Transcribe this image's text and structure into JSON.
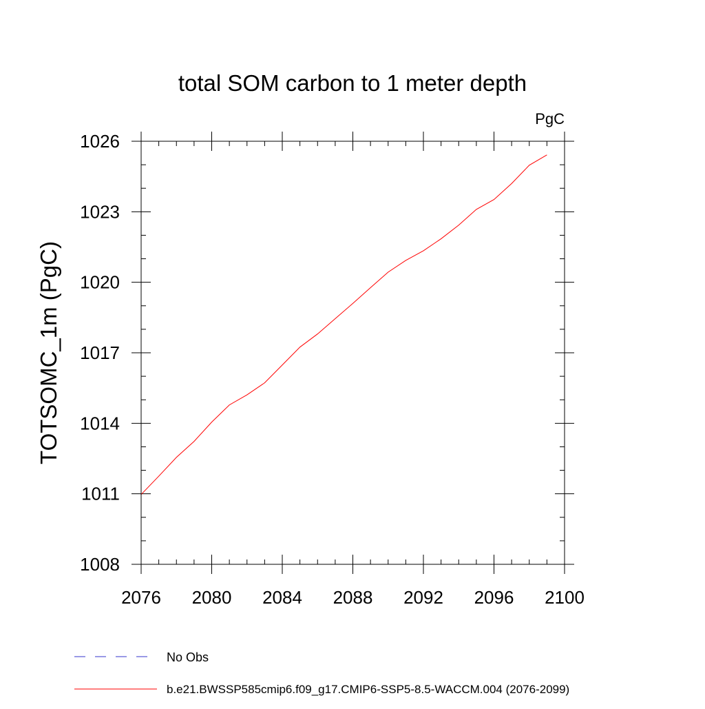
{
  "chart_data": {
    "type": "line",
    "title": "total SOM carbon to 1 meter depth",
    "units_label": "PgC",
    "ylabel": "TOTSOMC_1m  (PgC)",
    "xlabel": "",
    "xlim": [
      2076,
      2100
    ],
    "ylim": [
      1008,
      1026
    ],
    "x_ticks": [
      2076,
      2080,
      2084,
      2088,
      2092,
      2096,
      2100
    ],
    "y_ticks": [
      1008,
      1011,
      1014,
      1017,
      1020,
      1023,
      1026
    ],
    "x_minor_step": 1,
    "y_minor_step": 1,
    "grid": false,
    "legend_position": "bottom",
    "series": [
      {
        "name": "b.e21.BWSSP585cmip6.f09_g17.CMIP6-SSP5-8.5-WACCM.004 (2076-2099)",
        "color": "#ff0000",
        "dash": "solid",
        "x": [
          2076,
          2077,
          2078,
          2079,
          2080,
          2081,
          2082,
          2083,
          2084,
          2085,
          2086,
          2087,
          2088,
          2089,
          2090,
          2091,
          2092,
          2093,
          2094,
          2095,
          2096,
          2097,
          2098,
          2099
        ],
        "values": [
          1010.97,
          1011.75,
          1012.55,
          1013.23,
          1014.05,
          1014.78,
          1015.21,
          1015.72,
          1016.48,
          1017.24,
          1017.8,
          1018.45,
          1019.1,
          1019.77,
          1020.43,
          1020.93,
          1021.34,
          1021.85,
          1022.43,
          1023.1,
          1023.52,
          1024.2,
          1024.98,
          1025.42
        ]
      }
    ],
    "legend": [
      {
        "label": "No Obs",
        "color": "#3333cc",
        "dash": "dashed"
      },
      {
        "label": "b.e21.BWSSP585cmip6.f09_g17.CMIP6-SSP5-8.5-WACCM.004 (2076-2099)",
        "color": "#ff0000",
        "dash": "solid"
      }
    ]
  }
}
